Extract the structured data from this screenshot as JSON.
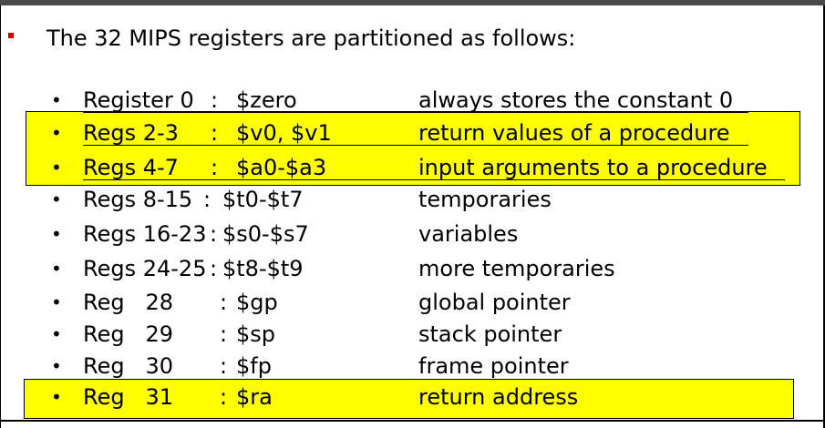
{
  "heading": "The 32 MIPS registers are partitioned as follows:",
  "bullet_glyph": "•",
  "rows": [
    {
      "reg": "Register 0",
      "colon": ":",
      "name": "$zero",
      "desc": "always stores the constant 0"
    },
    {
      "reg": "Regs 2-3",
      "colon": ":",
      "name": "$v0, $v1",
      "desc": "return values of a procedure"
    },
    {
      "reg": "Regs 4-7",
      "colon": ":",
      "name": "$a0-$a3",
      "desc": "input arguments to a procedure"
    },
    {
      "reg": "Regs 8-15",
      "colon": ":",
      "name": "$t0-$t7",
      "desc": "temporaries"
    },
    {
      "reg": "Regs 16-23",
      "colon": ":",
      "name": "$s0-$s7",
      "desc": "variables"
    },
    {
      "reg": "Regs 24-25",
      "colon": ":",
      "name": "$t8-$t9",
      "desc": "more temporaries"
    },
    {
      "reg": "Reg   28",
      "colon": ":",
      "name": "$gp",
      "desc": "global pointer"
    },
    {
      "reg": "Reg   29",
      "colon": ":",
      "name": "$sp",
      "desc": "stack pointer"
    },
    {
      "reg": "Reg   30",
      "colon": ":",
      "name": "$fp",
      "desc": "frame pointer"
    },
    {
      "reg": "Reg   31",
      "colon": ":",
      "name": "$ra",
      "desc": "return address"
    }
  ],
  "colors": {
    "highlight": "#ffff00",
    "main_bullet": "#cc0000"
  }
}
